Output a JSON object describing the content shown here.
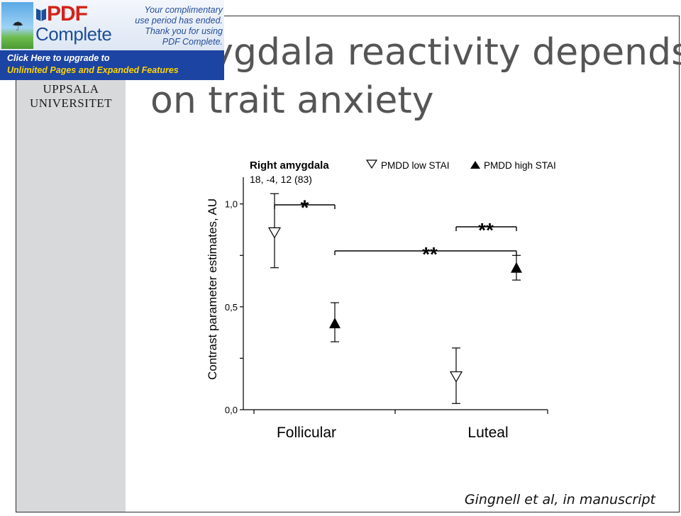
{
  "slide": {
    "title_line1": "Amygdala reactivity depends",
    "title_line2": "on trait anxiety",
    "institution_line1": "UPPSALA",
    "institution_line2": "UNIVERSITET",
    "citation": "Gingnell et al, in manuscript"
  },
  "banner": {
    "brand_pdf": "PDF",
    "brand_complete": "Complete",
    "message_line1": "Your complimentary",
    "message_line2": "use period has ended.",
    "message_line3": "Thank you for using",
    "message_line4": "PDF Complete.",
    "upgrade_line1": "Click Here to upgrade to",
    "upgrade_line2": "Unlimited Pages and Expanded Features",
    "colors": {
      "bar": "#1c44a2",
      "pdf_red": "#d3231b",
      "accent_yellow": "#ffd400"
    },
    "icon": "pdf-complete-logo-icon"
  },
  "chart_data": {
    "type": "scatter",
    "title": "Right amygdala",
    "subtitle": "18, -4, 12 (83)",
    "ylabel": "Contrast parameter estimates, AU",
    "xlabel": "",
    "categories": [
      "Follicular",
      "Luteal"
    ],
    "ylim": [
      0,
      1.13
    ],
    "yticks": [
      {
        "value": 0.0,
        "label": "0,0"
      },
      {
        "value": 0.25,
        "label": ""
      },
      {
        "value": 0.5,
        "label": "0,5"
      },
      {
        "value": 0.75,
        "label": ""
      },
      {
        "value": 1.0,
        "label": "1,0"
      }
    ],
    "legend_position": "top-right",
    "grid": false,
    "series": [
      {
        "name": "PMDD low STAI",
        "marker": "triangle-down-open",
        "points": [
          {
            "category": "Follicular",
            "y": 0.86,
            "err_low": 0.69,
            "err_high": 1.05
          },
          {
            "category": "Luteal",
            "y": 0.16,
            "err_low": 0.03,
            "err_high": 0.3
          }
        ]
      },
      {
        "name": "PMDD high STAI",
        "marker": "triangle-up-filled",
        "points": [
          {
            "category": "Follicular",
            "y": 0.42,
            "err_low": 0.33,
            "err_high": 0.52
          },
          {
            "category": "Luteal",
            "y": 0.69,
            "err_low": 0.63,
            "err_high": 0.75
          }
        ]
      }
    ],
    "annotations": [
      {
        "label": "*",
        "from": "Follicular PMDD low STAI",
        "to": "Follicular PMDD high STAI"
      },
      {
        "label": "**",
        "from": "Follicular PMDD high STAI",
        "to": "Luteal PMDD high STAI"
      },
      {
        "label": "**",
        "from": "Luteal PMDD low STAI",
        "to": "Luteal PMDD high STAI"
      }
    ],
    "colors": {
      "marker": "#000000",
      "axis": "#000000"
    }
  }
}
